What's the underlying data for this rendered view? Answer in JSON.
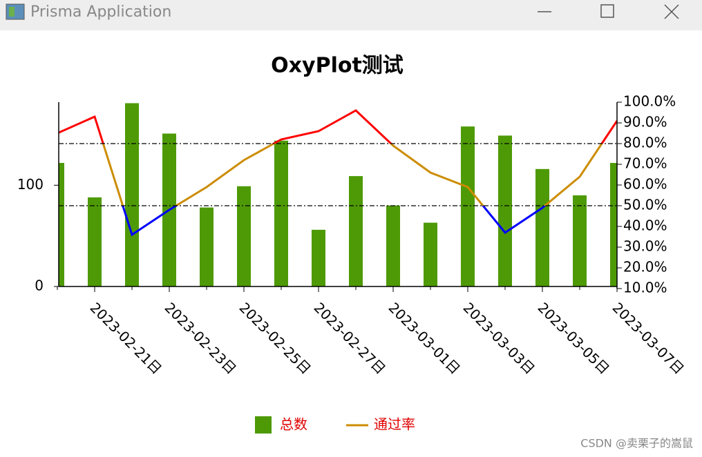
{
  "window": {
    "title": "Prisma Application"
  },
  "chart_data": {
    "type": "bar-line",
    "title": "OxyPlot测试",
    "categories": [
      null,
      "2023-02-21日",
      null,
      "2023-02-23日",
      null,
      "2023-02-25日",
      null,
      "2023-02-27日",
      null,
      "2023-03-01日",
      null,
      "2023-03-03日",
      null,
      "2023-03-05日",
      null,
      "2023-03-07日"
    ],
    "series": [
      {
        "name": "总数",
        "type": "bar",
        "color": "#4e9a06",
        "values": [
          122,
          88,
          181,
          151,
          78,
          99,
          144,
          56,
          109,
          80,
          63,
          158,
          149,
          116,
          90,
          122
        ]
      },
      {
        "name": "通过率",
        "type": "line",
        "axis": "y2",
        "color": "#cc8c00",
        "above_color": "#ff0000",
        "below_color": "#0000ff",
        "values": [
          85,
          93,
          36,
          48,
          59,
          72,
          82,
          86,
          96,
          79,
          66,
          59,
          37,
          49,
          64,
          91
        ]
      }
    ],
    "upper_limit": 80,
    "lower_limit": 50,
    "ylim": [
      0,
      182
    ],
    "yticks": [
      0,
      100
    ],
    "y2lim": [
      10,
      100
    ],
    "y2ticks": [
      {
        "value": 10,
        "label": "10.0%"
      },
      {
        "value": 20,
        "label": "20.0%"
      },
      {
        "value": 30,
        "label": "30.0%"
      },
      {
        "value": 40,
        "label": "40.0%"
      },
      {
        "value": 50,
        "label": "50.0%"
      },
      {
        "value": 60,
        "label": "60.0%"
      },
      {
        "value": 70,
        "label": "70.0%"
      },
      {
        "value": 80,
        "label": "80.0%"
      },
      {
        "value": 90,
        "label": "90.0%"
      },
      {
        "value": 100,
        "label": "100.0%"
      }
    ],
    "legend": "bottom"
  },
  "watermark": "CSDN @卖栗子的嵩鼠"
}
